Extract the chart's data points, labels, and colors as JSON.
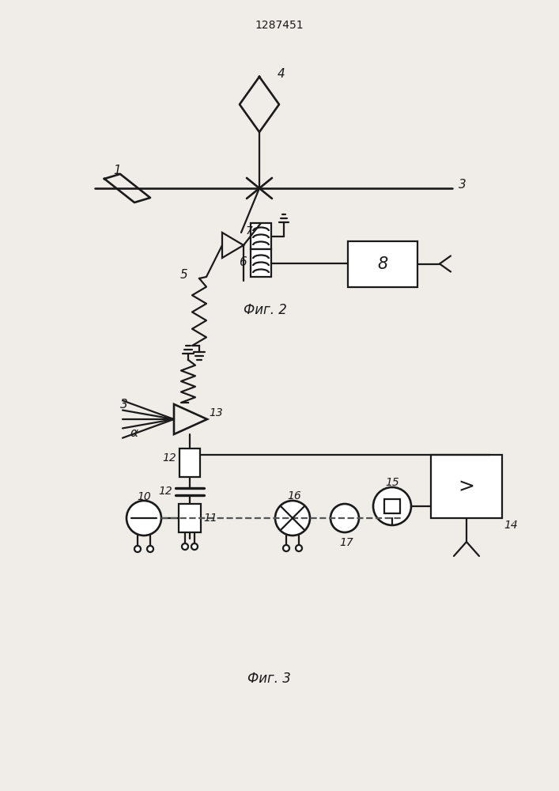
{
  "title": "1287451",
  "fig1_caption": "Фиг. 2",
  "fig2_caption": "Фиг. 3",
  "bg_color": "#f0ede8",
  "line_color": "#1a1a1a",
  "line_width": 1.6
}
